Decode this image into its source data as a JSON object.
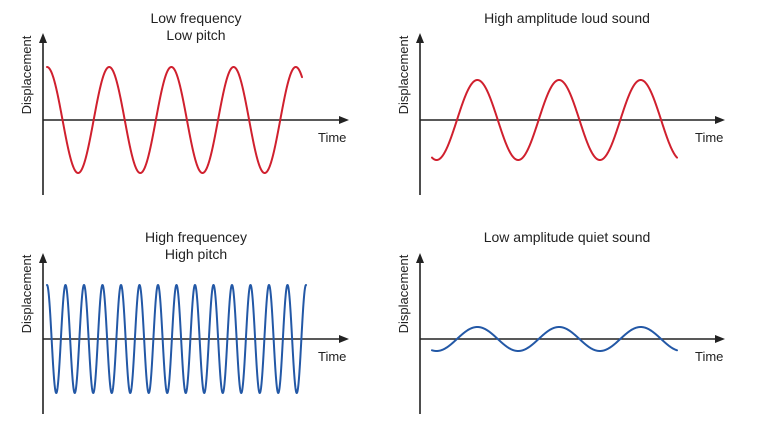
{
  "colors": {
    "red": "#d0202e",
    "blue": "#2358a6"
  },
  "panels": [
    {
      "id": "low-frequency",
      "title_lines": [
        "Low frequency",
        "Low pitch"
      ],
      "ylabel": "Displacement",
      "xlabel": "Time",
      "wave": {
        "cycles": 4.1,
        "amplitude": 1.0,
        "color_key": "red",
        "start_phase_deg": 90
      }
    },
    {
      "id": "high-amplitude",
      "title_lines": [
        "High amplitude loud sound"
      ],
      "ylabel": "Displacement",
      "xlabel": "Time",
      "wave": {
        "cycles": 3.0,
        "amplitude": 1.0,
        "color_key": "red",
        "start_phase_deg": 250
      }
    },
    {
      "id": "high-frequency",
      "title_lines": [
        "High frequencey",
        "High pitch"
      ],
      "ylabel": "Displacement",
      "xlabel": "Time",
      "wave": {
        "cycles": 14.0,
        "amplitude": 1.0,
        "color_key": "blue",
        "start_phase_deg": 90
      }
    },
    {
      "id": "low-amplitude",
      "title_lines": [
        "Low amplitude quiet sound"
      ],
      "ylabel": "Displacement",
      "xlabel": "Time",
      "wave": {
        "cycles": 3.0,
        "amplitude": 0.3,
        "color_key": "blue",
        "start_phase_deg": 250
      }
    }
  ]
}
